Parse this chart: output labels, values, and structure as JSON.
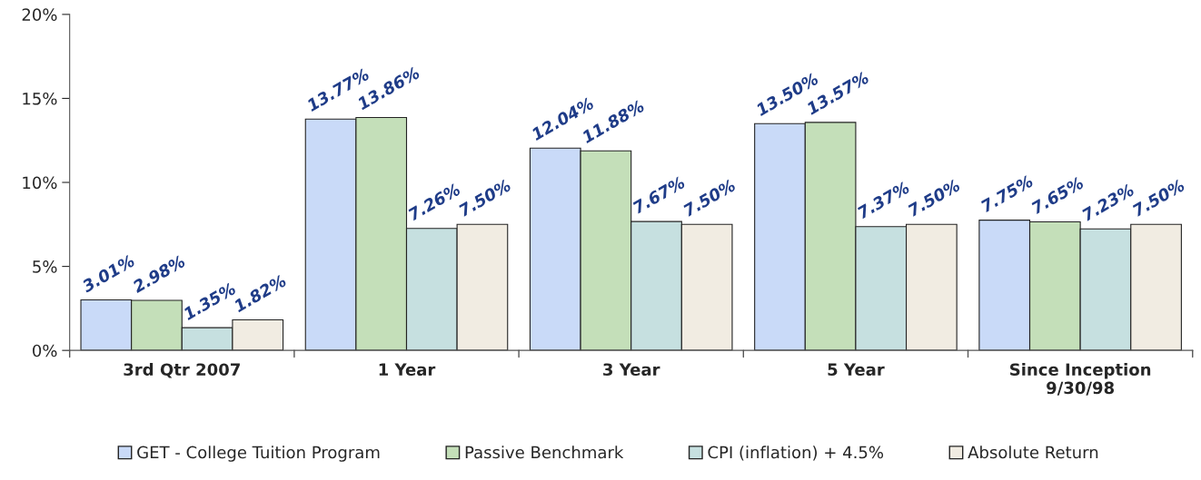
{
  "chart_data": {
    "type": "bar",
    "categories": [
      "3rd Qtr 2007",
      "1 Year",
      "3 Year",
      "5 Year",
      "Since Inception\n9/30/98"
    ],
    "series": [
      {
        "name": "GET - College Tuition Program",
        "color": "#c9daf8",
        "values": [
          3.01,
          13.77,
          12.04,
          13.5,
          7.75
        ],
        "value_labels": [
          "3.01%",
          "13.77%",
          "12.04%",
          "13.50%",
          "7.75%"
        ]
      },
      {
        "name": "Passive Benchmark",
        "color": "#c4dfb9",
        "values": [
          2.98,
          13.86,
          11.88,
          13.57,
          7.65
        ],
        "value_labels": [
          "2.98%",
          "13.86%",
          "11.88%",
          "13.57%",
          "7.65%"
        ]
      },
      {
        "name": "CPI (inflation) + 4.5%",
        "color": "#c6e0e0",
        "values": [
          1.35,
          7.26,
          7.67,
          7.37,
          7.23
        ],
        "value_labels": [
          "1.35%",
          "7.26%",
          "7.67%",
          "7.37%",
          "7.23%"
        ]
      },
      {
        "name": "Absolute Return",
        "color": "#f1ece2",
        "values": [
          1.82,
          7.5,
          7.5,
          7.5,
          7.5
        ],
        "value_labels": [
          "1.82%",
          "7.50%",
          "7.50%",
          "7.50%",
          "7.50%"
        ]
      }
    ],
    "ylim": [
      0,
      20
    ],
    "yticks": [
      {
        "value": 0,
        "label": "0%"
      },
      {
        "value": 5,
        "label": "5%"
      },
      {
        "value": 10,
        "label": "10%"
      },
      {
        "value": 15,
        "label": "15%"
      },
      {
        "value": 20,
        "label": "20%"
      }
    ],
    "grid": false,
    "legend": "bottom"
  }
}
